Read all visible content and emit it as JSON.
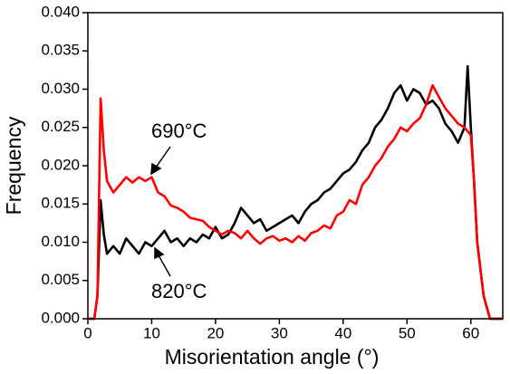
{
  "chart_data": {
    "type": "line",
    "x_label": "Misorientation angle (°)",
    "y_label": "Frequency",
    "x": [
      0,
      1,
      1.5,
      2,
      2.5,
      3,
      4,
      5,
      6,
      7,
      8,
      9,
      10,
      11,
      12,
      13,
      14,
      15,
      16,
      17,
      18,
      19,
      20,
      21,
      22,
      23,
      24,
      25,
      26,
      27,
      28,
      29,
      30,
      31,
      32,
      33,
      34,
      35,
      36,
      37,
      38,
      39,
      40,
      41,
      42,
      43,
      44,
      45,
      46,
      47,
      48,
      49,
      50,
      51,
      52,
      53,
      54,
      55,
      56,
      57,
      58,
      59,
      59.5,
      60,
      60.5,
      61,
      62,
      63,
      64,
      65
    ],
    "series": [
      {
        "name": "820°C",
        "color": "#000000",
        "values": [
          0,
          0,
          0.003,
          0.0155,
          0.011,
          0.0085,
          0.0095,
          0.0085,
          0.0105,
          0.0095,
          0.0085,
          0.01,
          0.0095,
          0.0105,
          0.0115,
          0.01,
          0.0105,
          0.0095,
          0.0105,
          0.01,
          0.011,
          0.0105,
          0.012,
          0.0105,
          0.011,
          0.0125,
          0.0145,
          0.0135,
          0.0125,
          0.013,
          0.0115,
          0.012,
          0.0125,
          0.013,
          0.0135,
          0.0125,
          0.014,
          0.015,
          0.0155,
          0.0165,
          0.017,
          0.018,
          0.019,
          0.0195,
          0.0205,
          0.022,
          0.023,
          0.025,
          0.026,
          0.0275,
          0.0295,
          0.0305,
          0.0285,
          0.03,
          0.0295,
          0.028,
          0.0285,
          0.0275,
          0.0255,
          0.0245,
          0.023,
          0.025,
          0.033,
          0.025,
          0.018,
          0.01,
          0.003,
          0,
          0,
          0
        ]
      },
      {
        "name": "690°C",
        "color": "#ff0000",
        "values": [
          0,
          0,
          0.003,
          0.0288,
          0.022,
          0.018,
          0.0165,
          0.0175,
          0.0185,
          0.0178,
          0.0185,
          0.018,
          0.0185,
          0.0165,
          0.016,
          0.0148,
          0.0145,
          0.014,
          0.0132,
          0.013,
          0.0128,
          0.012,
          0.0115,
          0.011,
          0.0115,
          0.0112,
          0.0105,
          0.0115,
          0.0105,
          0.0098,
          0.0105,
          0.0108,
          0.0102,
          0.0105,
          0.01,
          0.0108,
          0.0102,
          0.0112,
          0.0115,
          0.0122,
          0.0118,
          0.0135,
          0.014,
          0.0155,
          0.015,
          0.0175,
          0.0185,
          0.02,
          0.021,
          0.0225,
          0.0235,
          0.025,
          0.0245,
          0.0255,
          0.0262,
          0.028,
          0.0305,
          0.029,
          0.0275,
          0.0265,
          0.0255,
          0.025,
          0.0245,
          0.024,
          0.018,
          0.01,
          0.003,
          0,
          0,
          0
        ]
      }
    ],
    "xlim": [
      0,
      65
    ],
    "xticks": [
      0,
      10,
      20,
      30,
      40,
      50,
      60
    ],
    "ylim": [
      0,
      0.04
    ],
    "yticks": [
      {
        "value": 0,
        "label": "0.000"
      },
      {
        "value": 0.005,
        "label": "0.005"
      },
      {
        "value": 0.01,
        "label": "0.010"
      },
      {
        "value": 0.015,
        "label": "0.015"
      },
      {
        "value": 0.02,
        "label": "0.020"
      },
      {
        "value": 0.025,
        "label": "0.025"
      },
      {
        "value": 0.03,
        "label": "0.030"
      },
      {
        "value": 0.035,
        "label": "0.035"
      },
      {
        "value": 0.04,
        "label": "0.040"
      }
    ],
    "grid": false
  }
}
